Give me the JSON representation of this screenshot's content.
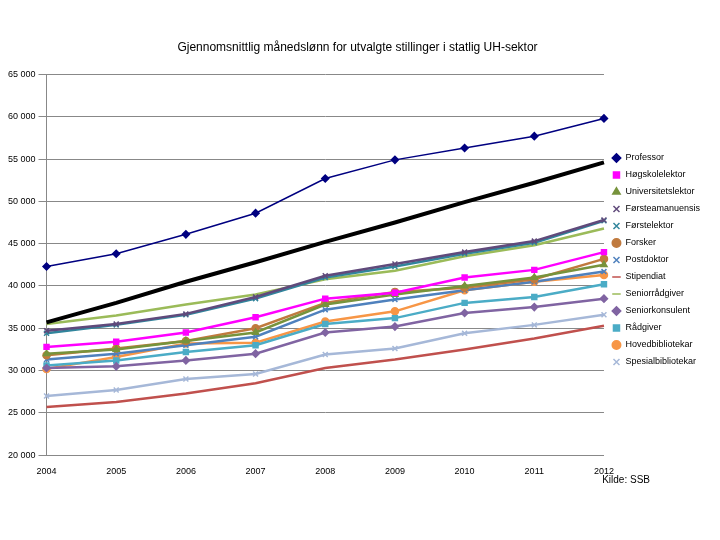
{
  "chart_data": {
    "type": "line",
    "title": "Gjennomsnittlig månedslønn for utvalgte stillinger i statlig UH-sektor",
    "annotations": [
      "Kilde: SSB"
    ],
    "categories": [
      "2004",
      "2005",
      "2006",
      "2007",
      "2008",
      "2009",
      "2010",
      "2011",
      "2012"
    ],
    "ylim": [
      20000,
      65000
    ],
    "yticks": [
      {
        "value": 20000,
        "label": "20 000"
      },
      {
        "value": 25000,
        "label": "25 000"
      },
      {
        "value": 30000,
        "label": "30 000"
      },
      {
        "value": 35000,
        "label": "35 000"
      },
      {
        "value": 40000,
        "label": "40 000"
      },
      {
        "value": 45000,
        "label": "45 000"
      },
      {
        "value": 50000,
        "label": "50 000"
      },
      {
        "value": 55000,
        "label": "55 000"
      },
      {
        "value": 60000,
        "label": "60 000"
      },
      {
        "value": 65000,
        "label": "65 000"
      }
    ],
    "grid": true,
    "legend": "right",
    "series": [
      {
        "name": "Professor",
        "color": "#000080",
        "marker": "diamond",
        "values": [
          42300,
          43800,
          46100,
          48600,
          52700,
          54900,
          56300,
          57700,
          59800
        ]
      },
      {
        "name": null,
        "color": "#000000",
        "marker": "none",
        "values": [
          35700,
          38000,
          40500,
          42800,
          45200,
          47500,
          49900,
          52200,
          54600
        ]
      },
      {
        "name": "Høgskolelektor",
        "color": "#ff00ff",
        "marker": "square",
        "values": [
          32800,
          33400,
          34500,
          36300,
          38500,
          39200,
          41000,
          41900,
          44000
        ]
      },
      {
        "name": "Universitetslektor",
        "color": "#77933c",
        "marker": "triangle",
        "values": [
          32000,
          32500,
          33500,
          34500,
          37800,
          39000,
          40000,
          41000,
          42500
        ]
      },
      {
        "name": "Førsteamanuensis",
        "color": "#604a7b",
        "marker": "x",
        "values": [
          34700,
          35500,
          36700,
          38700,
          41200,
          42600,
          44000,
          45300,
          47800
        ]
      },
      {
        "name": "Førstelektor",
        "color": "#31859c",
        "marker": "x",
        "values": [
          34400,
          35400,
          36600,
          38500,
          41000,
          42300,
          43800,
          45100,
          47700
        ]
      },
      {
        "name": "Forsker",
        "color": "#c07a3e",
        "marker": "circle",
        "values": [
          31800,
          32600,
          33500,
          35000,
          38000,
          39300,
          39800,
          40800,
          43200
        ]
      },
      {
        "name": "Postdoktor",
        "color": "#4f81bd",
        "marker": "x",
        "values": [
          31300,
          32000,
          33000,
          34000,
          37200,
          38400,
          39500,
          40500,
          41700
        ]
      },
      {
        "name": "Stipendiat",
        "color": "#c0504d",
        "marker": "none",
        "values": [
          25700,
          26300,
          27300,
          28500,
          30300,
          31300,
          32500,
          33800,
          35300
        ]
      },
      {
        "name": "Seniorrådgiver",
        "color": "#9bbb59",
        "marker": "none",
        "values": [
          35500,
          36500,
          37800,
          39000,
          40800,
          41800,
          43500,
          44800,
          46800
        ]
      },
      {
        "name": "Seniorkonsulent",
        "color": "#8064a2",
        "marker": "diamond",
        "values": [
          30300,
          30500,
          31200,
          32000,
          34500,
          35200,
          36800,
          37500,
          38500
        ]
      },
      {
        "name": "Rådgiver",
        "color": "#4bacc6",
        "marker": "square",
        "values": [
          30600,
          31200,
          32200,
          33000,
          35500,
          36200,
          38000,
          38700,
          40200
        ]
      },
      {
        "name": "Hovedbibliotekar",
        "color": "#f79646",
        "marker": "circle",
        "values": [
          30200,
          31600,
          33200,
          33300,
          35800,
          37000,
          39500,
          40500,
          41300
        ]
      },
      {
        "name": "Spesialbibliotekar",
        "color": "#a6b8d8",
        "marker": "x",
        "values": [
          27000,
          27700,
          29000,
          29600,
          31900,
          32600,
          34400,
          35400,
          36600
        ]
      }
    ]
  }
}
